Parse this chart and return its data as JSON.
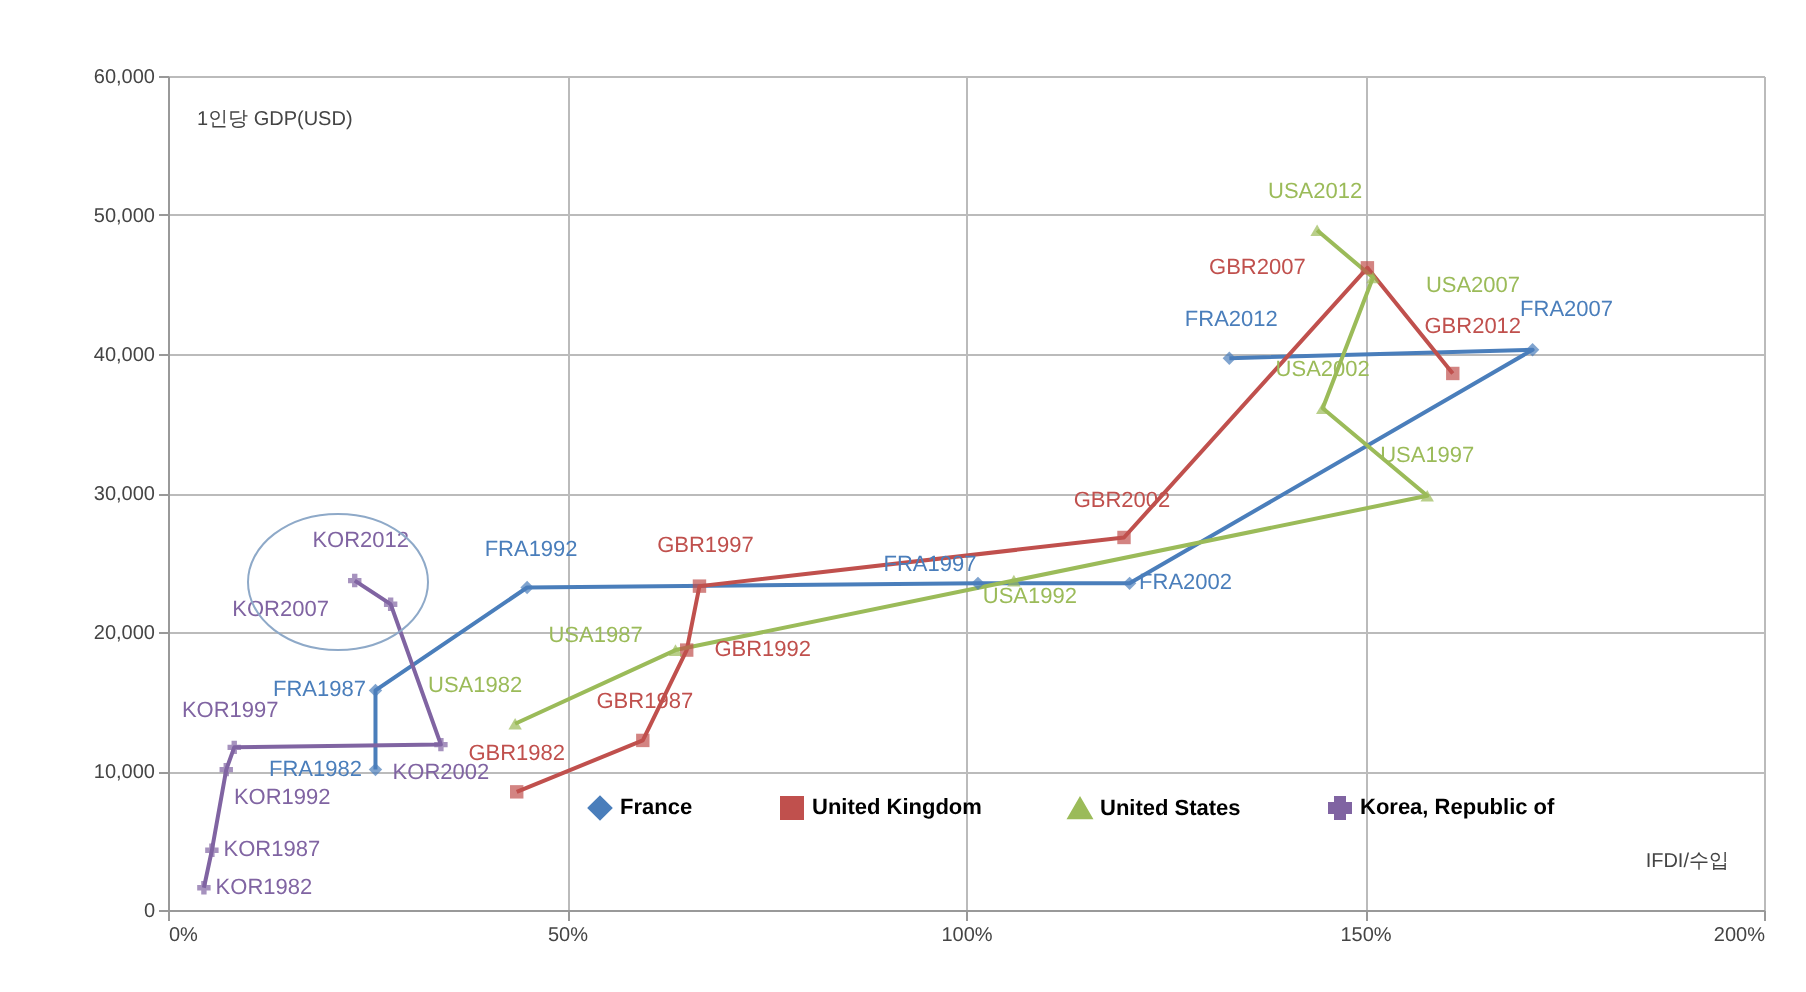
{
  "chart_data": {
    "type": "line",
    "xlabel": "IFDI/수입",
    "ylabel": "1인당 GDP(USD)",
    "xlim": [
      0,
      200
    ],
    "xticks": [
      {
        "value": 0,
        "label": "0%"
      },
      {
        "value": 50,
        "label": "50%"
      },
      {
        "value": 100,
        "label": "100%"
      },
      {
        "value": 150,
        "label": "150%"
      },
      {
        "value": 200,
        "label": "200%"
      }
    ],
    "ylim": [
      0,
      60000
    ],
    "yticks": [
      {
        "value": 0,
        "label": "0"
      },
      {
        "value": 10000,
        "label": "10,000"
      },
      {
        "value": 20000,
        "label": "20,000"
      },
      {
        "value": 30000,
        "label": "30,000"
      },
      {
        "value": 40000,
        "label": "40,000"
      },
      {
        "value": 50000,
        "label": "50,000"
      },
      {
        "value": 60000,
        "label": "60,000"
      }
    ],
    "grid": true,
    "legend": "bottom",
    "line_style": "solid",
    "series": [
      {
        "name": "France",
        "color": "#4a7ebb",
        "marker": "diamond",
        "x": [
          26,
          26,
          45,
          101.5,
          120.5,
          171,
          133
        ],
        "values": [
          10100,
          15800,
          23200,
          23500,
          23500,
          40300,
          39700
        ]
      },
      {
        "name": "United Kingdom",
        "color": "#c0504d",
        "marker": "square",
        "x": [
          43.7,
          59.5,
          65,
          66.6,
          119.8,
          150.3,
          161
        ],
        "values": [
          8500,
          12200,
          18700,
          23300,
          26800,
          46200,
          38600
        ]
      },
      {
        "name": "United States",
        "color": "#9bbb59",
        "marker": "triangle",
        "x": [
          43.5,
          63.6,
          106,
          157.8,
          144.7,
          151,
          144
        ],
        "values": [
          13400,
          18700,
          23700,
          29800,
          36100,
          45500,
          48900
        ]
      },
      {
        "name": "Korea, Republic of",
        "color": "#8064a2",
        "marker": "cross",
        "x": [
          4.5,
          5.5,
          7.3,
          8.3,
          34.2,
          27.9,
          23.4
        ],
        "values": [
          1600,
          4300,
          10100,
          11700,
          11900,
          22000,
          23700
        ]
      }
    ],
    "annotations": [
      {
        "text": "FRA1982",
        "x": 26,
        "y": 10100
      },
      {
        "text": "FRA1987",
        "x": 26,
        "y": 15800
      },
      {
        "text": "FRA1992",
        "x": 45,
        "y": 23200
      },
      {
        "text": "FRA1997",
        "x": 101.5,
        "y": 23500
      },
      {
        "text": "FRA2002",
        "x": 120.5,
        "y": 23500
      },
      {
        "text": "FRA2007",
        "x": 171,
        "y": 40300
      },
      {
        "text": "FRA2012",
        "x": 133,
        "y": 39700
      },
      {
        "text": "GBR1982",
        "x": 43.7,
        "y": 8500
      },
      {
        "text": "GBR1987",
        "x": 59.5,
        "y": 12200
      },
      {
        "text": "GBR1992",
        "x": 65,
        "y": 18700
      },
      {
        "text": "GBR1997",
        "x": 66.6,
        "y": 23300
      },
      {
        "text": "GBR2002",
        "x": 119.8,
        "y": 26800
      },
      {
        "text": "GBR2007",
        "x": 150.3,
        "y": 46200
      },
      {
        "text": "GBR2012",
        "x": 161,
        "y": 38600
      },
      {
        "text": "USA1982",
        "x": 43.5,
        "y": 13400
      },
      {
        "text": "USA1987",
        "x": 63.6,
        "y": 18700
      },
      {
        "text": "USA1992",
        "x": 106,
        "y": 23700
      },
      {
        "text": "USA1997",
        "x": 157.8,
        "y": 29800
      },
      {
        "text": "USA2002",
        "x": 144.7,
        "y": 36100
      },
      {
        "text": "USA2007",
        "x": 151,
        "y": 45500
      },
      {
        "text": "USA2012",
        "x": 144,
        "y": 48900
      },
      {
        "text": "KOR1982",
        "x": 4.5,
        "y": 1600
      },
      {
        "text": "KOR1987",
        "x": 5.5,
        "y": 4300
      },
      {
        "text": "KOR1992",
        "x": 7.3,
        "y": 10100
      },
      {
        "text": "KOR1997",
        "x": 8.3,
        "y": 11700
      },
      {
        "text": "KOR2002",
        "x": 34.2,
        "y": 11900
      },
      {
        "text": "KOR2007",
        "x": 27.9,
        "y": 22000
      },
      {
        "text": "KOR2012",
        "x": 23.4,
        "y": 23700
      }
    ]
  }
}
